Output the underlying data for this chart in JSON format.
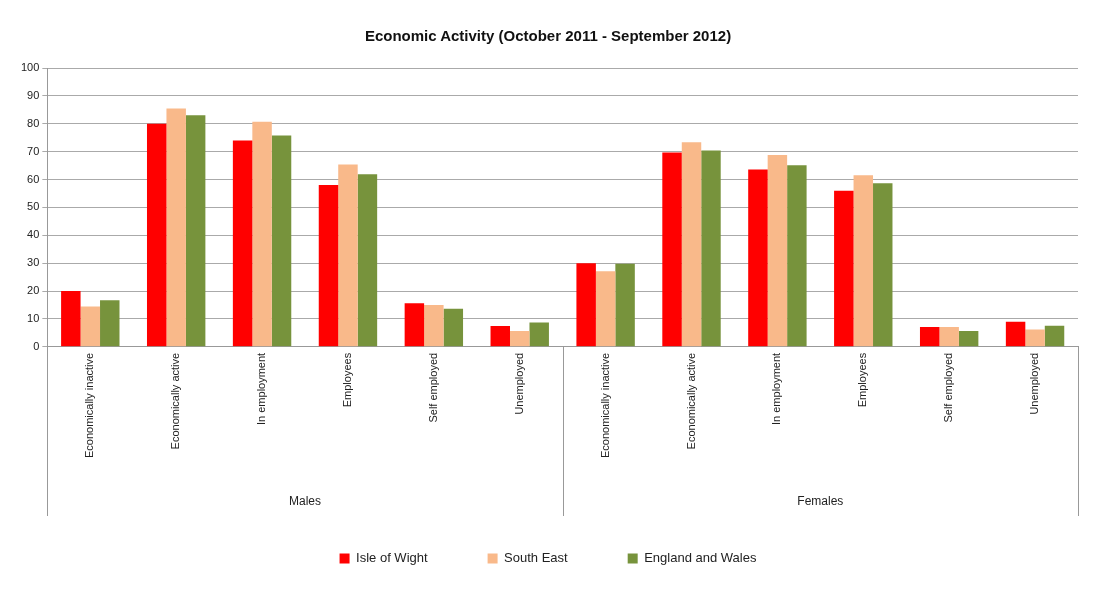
{
  "chart_data": {
    "type": "bar",
    "title": "Economic Activity (October 2011 - September 2012)",
    "categories": [
      "Economically inactive",
      "Economically active",
      "In employment",
      "Employees",
      "Self employed",
      "Unemployed",
      "Economically inactive",
      "Economically active",
      "In employment",
      "Employees",
      "Self employed",
      "Unemployed"
    ],
    "series": [
      {
        "name": "Isle of Wight",
        "color": "#ff0000",
        "values": [
          20,
          80,
          74,
          58,
          15.6,
          7.5,
          30,
          69.7,
          63.6,
          56,
          7.1,
          9
        ]
      },
      {
        "name": "South East",
        "color": "#f9b98a",
        "values": [
          14.5,
          85.5,
          80.7,
          65.4,
          15,
          5.7,
          27.1,
          73.4,
          68.8,
          61.5,
          7.1,
          6.2
        ]
      },
      {
        "name": "England and Wales",
        "color": "#77933c",
        "values": [
          16.7,
          83.1,
          75.8,
          61.9,
          13.7,
          8.7,
          29.8,
          70.4,
          65.1,
          58.7,
          5.7,
          7.6
        ]
      }
    ],
    "annotations": [
      "Males",
      "Females"
    ],
    "ylim": [
      0,
      100
    ],
    "yticks": [
      0,
      10,
      20,
      30,
      40,
      50,
      60,
      70,
      80,
      90,
      100
    ],
    "grid": "y",
    "legend": "bottom"
  }
}
